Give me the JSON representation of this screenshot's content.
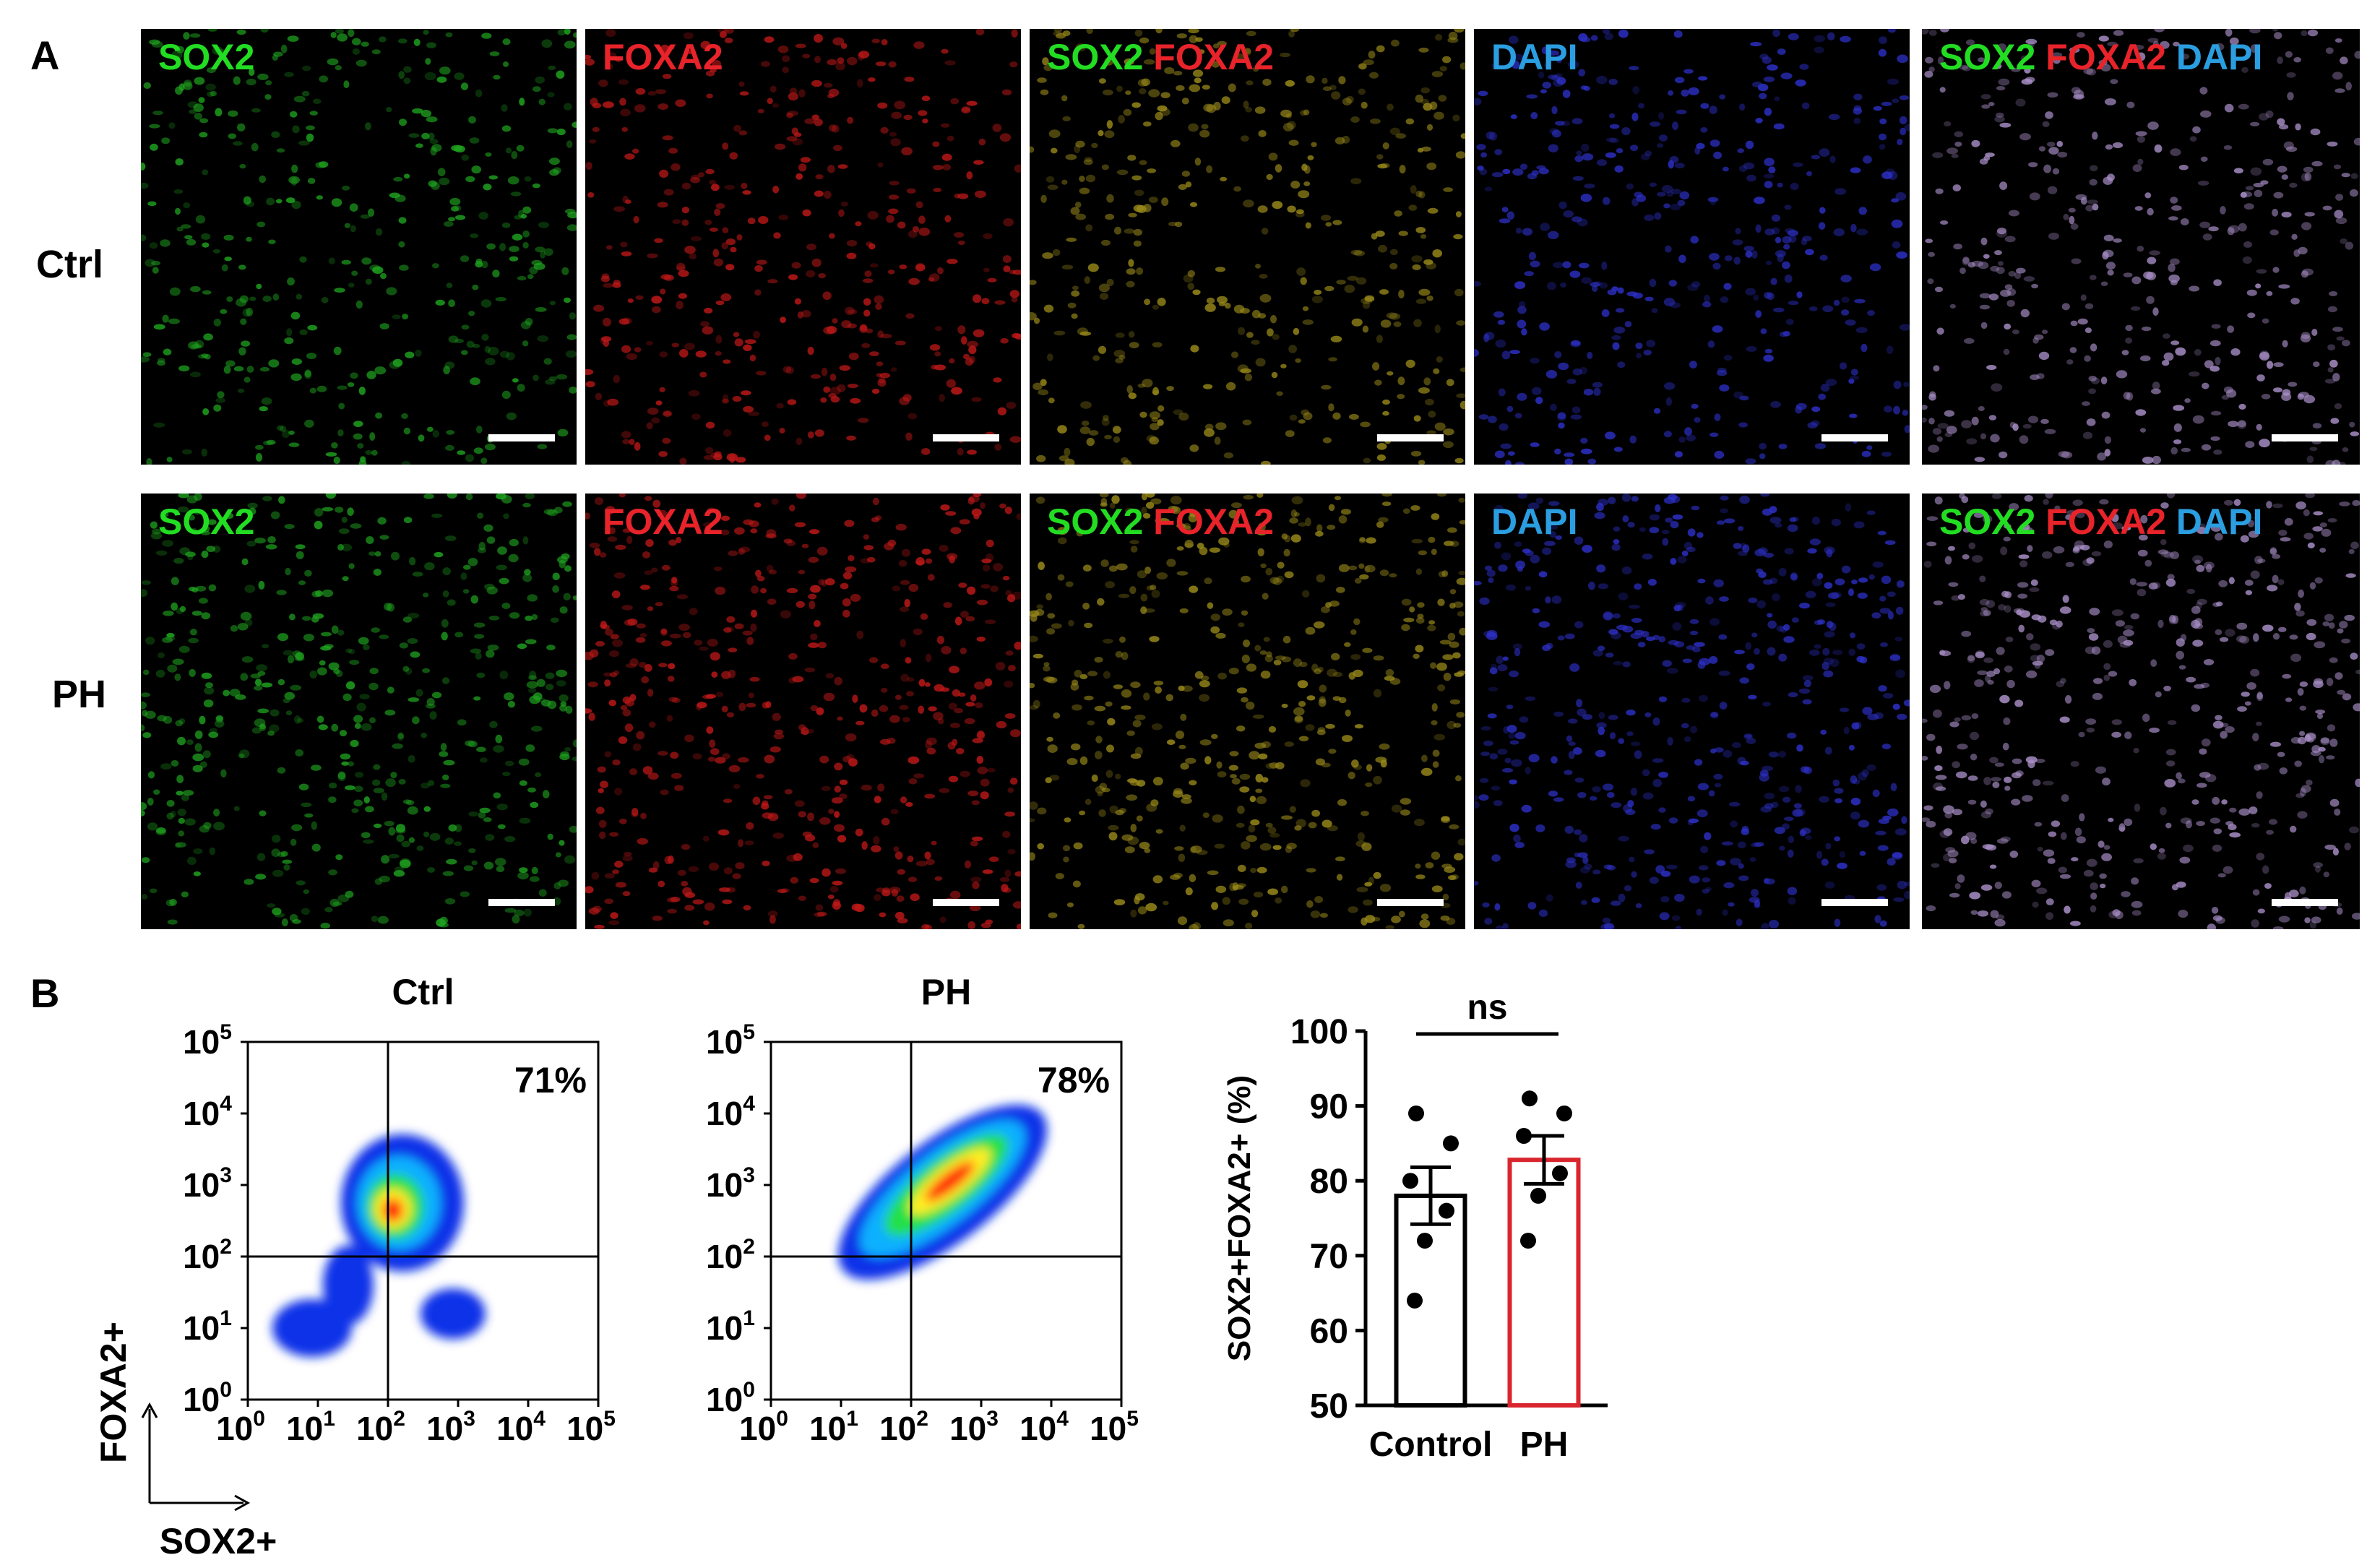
{
  "panel_a": {
    "letter": "A",
    "rows": [
      {
        "label": "Ctrl"
      },
      {
        "label": "PH"
      }
    ],
    "channels": [
      {
        "parts": [
          {
            "text": "SOX2",
            "color": "#22dd22"
          }
        ]
      },
      {
        "parts": [
          {
            "text": "FOXA2",
            "color": "#e8232a"
          }
        ]
      },
      {
        "parts": [
          {
            "text": "SOX2",
            "color": "#22dd22"
          },
          {
            "text": "FOXA2",
            "color": "#e8232a"
          }
        ]
      },
      {
        "parts": [
          {
            "text": "DAPI",
            "color": "#2a9ee0"
          }
        ]
      },
      {
        "parts": [
          {
            "text": "SOX2",
            "color": "#22dd22"
          },
          {
            "text": "FOXA2",
            "color": "#e8232a"
          },
          {
            "text": "DAPI",
            "color": "#2a9ee0"
          }
        ]
      }
    ],
    "tile_colors": [
      "#1fa31f",
      "#c01818",
      "#9a8a1a",
      "#2d30c8",
      "#a98fc8"
    ]
  },
  "panel_b": {
    "letter": "B",
    "flow_plots": [
      {
        "title": "Ctrl",
        "percent": "71%"
      },
      {
        "title": "PH",
        "percent": "78%"
      }
    ],
    "flow_axes": {
      "x_ticks": [
        "0",
        "1",
        "2",
        "3",
        "4",
        "5"
      ],
      "y_ticks": [
        "0",
        "1",
        "2",
        "3",
        "4",
        "5"
      ],
      "base": "10",
      "x_axis_label": "SOX2+",
      "y_axis_label": "FOXA2+"
    },
    "chart_data": {
      "type": "bar",
      "categories": [
        "Control",
        "PH"
      ],
      "values": [
        78,
        82.8
      ],
      "sem": [
        3.8,
        3.2
      ],
      "points": [
        [
          89,
          85,
          80,
          76,
          72,
          64
        ],
        [
          91,
          89,
          86,
          81,
          78,
          72
        ]
      ],
      "ylabel": "SOX2+FOXA2+ (%)",
      "ylim": [
        50,
        100
      ],
      "yticks": [
        "50",
        "60",
        "70",
        "80",
        "90",
        "100"
      ],
      "bar_colors": [
        "#000000",
        "#d9262e"
      ],
      "significance": "ns"
    }
  }
}
